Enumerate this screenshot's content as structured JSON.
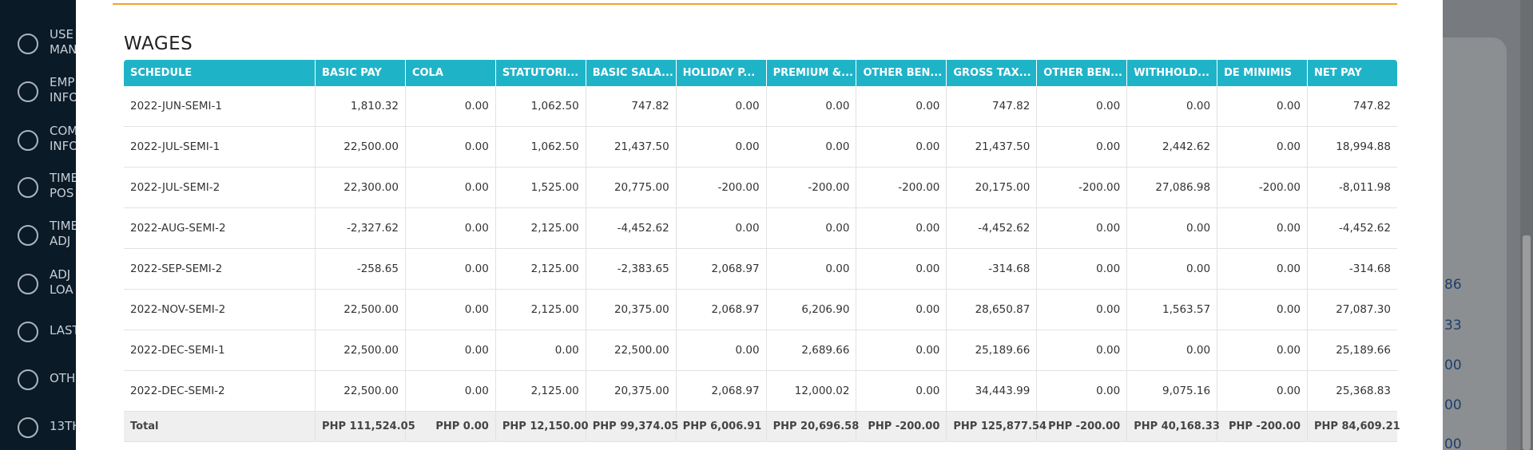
{
  "title": "WAGES",
  "sidebar": [
    [
      "USE",
      "MAN"
    ],
    [
      "EMP",
      "INFO"
    ],
    [
      "COM",
      "INFO"
    ],
    [
      "TIME",
      "POS"
    ],
    [
      "TIME",
      "ADJ"
    ],
    [
      "ADJ",
      "LOA"
    ],
    [
      "LAST"
    ],
    [
      "OTH"
    ],
    [
      "13TH"
    ]
  ],
  "background_fragments": [
    "86",
    "33",
    "00",
    "00",
    "00"
  ],
  "table": {
    "columns": [
      "SCHEDULE",
      "BASIC PAY",
      "COLA",
      "STATUTORI...",
      "BASIC SALA...",
      "HOLIDAY P...",
      "PREMIUM &...",
      "OTHER BEN...",
      "GROSS TAX...",
      "OTHER BEN...",
      "WITHHOLD...",
      "DE MINIMIS",
      "NET PAY"
    ],
    "rows": [
      [
        "2022-JUN-SEMI-1",
        "1,810.32",
        "0.00",
        "1,062.50",
        "747.82",
        "0.00",
        "0.00",
        "0.00",
        "747.82",
        "0.00",
        "0.00",
        "0.00",
        "747.82"
      ],
      [
        "2022-JUL-SEMI-1",
        "22,500.00",
        "0.00",
        "1,062.50",
        "21,437.50",
        "0.00",
        "0.00",
        "0.00",
        "21,437.50",
        "0.00",
        "2,442.62",
        "0.00",
        "18,994.88"
      ],
      [
        "2022-JUL-SEMI-2",
        "22,300.00",
        "0.00",
        "1,525.00",
        "20,775.00",
        "-200.00",
        "-200.00",
        "-200.00",
        "20,175.00",
        "-200.00",
        "27,086.98",
        "-200.00",
        "-8,011.98"
      ],
      [
        "2022-AUG-SEMI-2",
        "-2,327.62",
        "0.00",
        "2,125.00",
        "-4,452.62",
        "0.00",
        "0.00",
        "0.00",
        "-4,452.62",
        "0.00",
        "0.00",
        "0.00",
        "-4,452.62"
      ],
      [
        "2022-SEP-SEMI-2",
        "-258.65",
        "0.00",
        "2,125.00",
        "-2,383.65",
        "2,068.97",
        "0.00",
        "0.00",
        "-314.68",
        "0.00",
        "0.00",
        "0.00",
        "-314.68"
      ],
      [
        "2022-NOV-SEMI-2",
        "22,500.00",
        "0.00",
        "2,125.00",
        "20,375.00",
        "2,068.97",
        "6,206.90",
        "0.00",
        "28,650.87",
        "0.00",
        "1,563.57",
        "0.00",
        "27,087.30"
      ],
      [
        "2022-DEC-SEMI-1",
        "22,500.00",
        "0.00",
        "0.00",
        "22,500.00",
        "0.00",
        "2,689.66",
        "0.00",
        "25,189.66",
        "0.00",
        "0.00",
        "0.00",
        "25,189.66"
      ],
      [
        "2022-DEC-SEMI-2",
        "22,500.00",
        "0.00",
        "2,125.00",
        "20,375.00",
        "2,068.97",
        "12,000.02",
        "0.00",
        "34,443.99",
        "0.00",
        "9,075.16",
        "0.00",
        "25,368.83"
      ]
    ],
    "total": [
      "Total",
      "PHP 111,524.05",
      "PHP 0.00",
      "PHP 12,150.00",
      "PHP 99,374.05",
      "PHP 6,006.91",
      "PHP 20,696.58",
      "PHP -200.00",
      "PHP 125,877.54",
      "PHP -200.00",
      "PHP 40,168.33",
      "PHP -200.00",
      "PHP 84,609.21"
    ]
  }
}
